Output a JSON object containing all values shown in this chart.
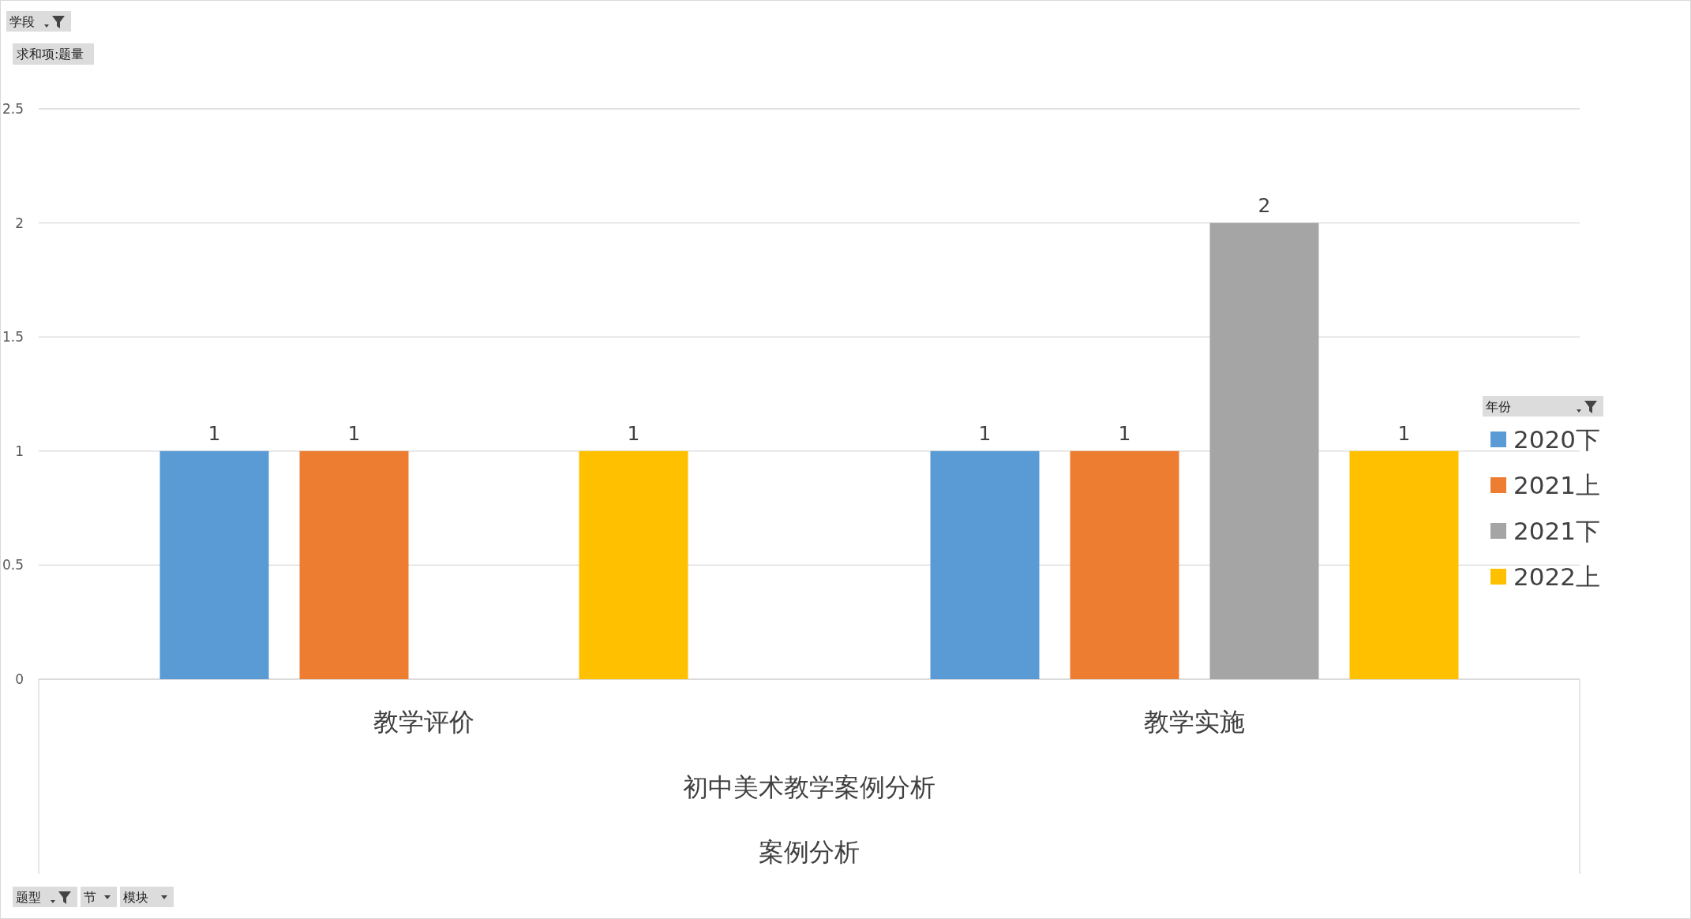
{
  "chart_data": {
    "type": "bar",
    "categories": [
      "教学评价",
      "教学实施"
    ],
    "series": [
      {
        "name": "2020下",
        "color": "#5b9bd5",
        "values": [
          1,
          1
        ]
      },
      {
        "name": "2021上",
        "color": "#ed7d31",
        "values": [
          1,
          1
        ]
      },
      {
        "name": "2021下",
        "color": "#a5a5a5",
        "values": [
          null,
          2
        ]
      },
      {
        "name": "2022上",
        "color": "#ffc000",
        "values": [
          1,
          1
        ]
      }
    ],
    "ylim": [
      0,
      2.5
    ],
    "yticks": [
      0,
      0.5,
      1,
      1.5,
      2,
      2.5
    ],
    "grid": "y",
    "data_labels": true,
    "legend": "right",
    "legend_title": "年份",
    "annotations": [
      "学段",
      "求和项:题量",
      "题型",
      "节",
      "模块",
      "初中美术教学案例分析",
      "案例分析"
    ]
  }
}
